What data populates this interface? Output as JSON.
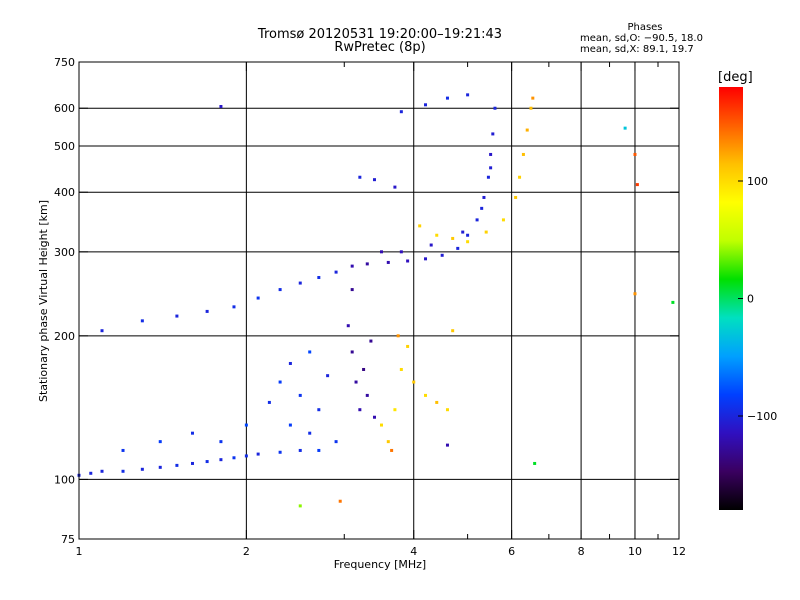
{
  "header": {
    "title_line1": "Tromsø 20120531 19:20:00–19:21:43",
    "title_line2": "RwPretec (8p)"
  },
  "stats": {
    "title": "Phases",
    "line1": "mean, sd,O: −90.5, 18.0",
    "line2": "mean, sd,X:  89.1, 19.7"
  },
  "colorbar": {
    "unit": "[deg]",
    "ticks": [
      "100",
      "0",
      "−100"
    ],
    "tick_values": [
      100,
      0,
      -100
    ],
    "range": [
      -180,
      180
    ],
    "colors": [
      "#000000",
      "#3a0060",
      "#3010c0",
      "#0040ff",
      "#00a0ff",
      "#00e0c0",
      "#00e000",
      "#c0ff00",
      "#ffff00",
      "#ffc000",
      "#ff6000",
      "#ff0000"
    ]
  },
  "chart_data": {
    "type": "scatter",
    "title": "Tromsø 20120531 19:20:00–19:21:43",
    "subtitle": "RwPretec (8p)",
    "xlabel": "Frequency [MHz]",
    "ylabel": "Stationary phase Virtual Height [km]",
    "xscale": "log",
    "yscale": "log",
    "xlim": [
      1,
      12
    ],
    "ylim": [
      75,
      750
    ],
    "xticks": [
      1,
      2,
      4,
      6,
      8,
      10,
      12
    ],
    "yticks": [
      75,
      100,
      200,
      300,
      400,
      500,
      600,
      750
    ],
    "xminor": [
      3,
      5,
      7,
      9,
      11
    ],
    "grid": true,
    "colorbar_label": "[deg]",
    "points": [
      {
        "f": 1.05,
        "h": 103,
        "p": -100
      },
      {
        "f": 1.1,
        "h": 104,
        "p": -100
      },
      {
        "f": 1.2,
        "h": 104,
        "p": -95
      },
      {
        "f": 1.3,
        "h": 105,
        "p": -100
      },
      {
        "f": 1.4,
        "h": 106,
        "p": -100
      },
      {
        "f": 1.5,
        "h": 107,
        "p": -95
      },
      {
        "f": 1.6,
        "h": 108,
        "p": -100
      },
      {
        "f": 1.7,
        "h": 109,
        "p": -95
      },
      {
        "f": 1.8,
        "h": 110,
        "p": -100
      },
      {
        "f": 1.9,
        "h": 111,
        "p": -90
      },
      {
        "f": 2.0,
        "h": 112,
        "p": -95
      },
      {
        "f": 2.1,
        "h": 113,
        "p": -100
      },
      {
        "f": 2.3,
        "h": 114,
        "p": -90
      },
      {
        "f": 2.5,
        "h": 115,
        "p": -95
      },
      {
        "f": 2.7,
        "h": 115,
        "p": -85
      },
      {
        "f": 1.2,
        "h": 115,
        "p": -90
      },
      {
        "f": 1.4,
        "h": 120,
        "p": -85
      },
      {
        "f": 1.6,
        "h": 125,
        "p": -95
      },
      {
        "f": 1.8,
        "h": 120,
        "p": -90
      },
      {
        "f": 2.0,
        "h": 130,
        "p": -80
      },
      {
        "f": 2.2,
        "h": 145,
        "p": -95
      },
      {
        "f": 2.3,
        "h": 160,
        "p": -85
      },
      {
        "f": 2.4,
        "h": 175,
        "p": -100
      },
      {
        "f": 2.5,
        "h": 150,
        "p": -90
      },
      {
        "f": 2.6,
        "h": 185,
        "p": -80
      },
      {
        "f": 2.7,
        "h": 140,
        "p": -95
      },
      {
        "f": 2.8,
        "h": 165,
        "p": -100
      },
      {
        "f": 2.9,
        "h": 120,
        "p": -90
      },
      {
        "f": 2.4,
        "h": 130,
        "p": -85
      },
      {
        "f": 2.6,
        "h": 125,
        "p": -95
      },
      {
        "f": 3.05,
        "h": 210,
        "p": -120
      },
      {
        "f": 3.1,
        "h": 185,
        "p": -130
      },
      {
        "f": 3.15,
        "h": 160,
        "p": -125
      },
      {
        "f": 3.2,
        "h": 140,
        "p": -120
      },
      {
        "f": 3.25,
        "h": 170,
        "p": -135
      },
      {
        "f": 3.3,
        "h": 150,
        "p": -125
      },
      {
        "f": 3.35,
        "h": 195,
        "p": -130
      },
      {
        "f": 3.4,
        "h": 135,
        "p": -120
      },
      {
        "f": 3.1,
        "h": 250,
        "p": -130
      },
      {
        "f": 3.5,
        "h": 130,
        "p": 100
      },
      {
        "f": 3.6,
        "h": 120,
        "p": 110
      },
      {
        "f": 3.7,
        "h": 140,
        "p": 95
      },
      {
        "f": 3.8,
        "h": 170,
        "p": 100
      },
      {
        "f": 3.9,
        "h": 190,
        "p": 105
      },
      {
        "f": 4.0,
        "h": 160,
        "p": 110
      },
      {
        "f": 4.2,
        "h": 150,
        "p": 100
      },
      {
        "f": 4.4,
        "h": 145,
        "p": 115
      },
      {
        "f": 4.6,
        "h": 140,
        "p": 100
      },
      {
        "f": 3.75,
        "h": 200,
        "p": 130
      },
      {
        "f": 3.65,
        "h": 115,
        "p": 140
      },
      {
        "f": 4.7,
        "h": 205,
        "p": 110
      },
      {
        "f": 1.1,
        "h": 205,
        "p": -100
      },
      {
        "f": 1.3,
        "h": 215,
        "p": -95
      },
      {
        "f": 1.5,
        "h": 220,
        "p": -100
      },
      {
        "f": 1.7,
        "h": 225,
        "p": -100
      },
      {
        "f": 1.9,
        "h": 230,
        "p": -95
      },
      {
        "f": 2.1,
        "h": 240,
        "p": -90
      },
      {
        "f": 2.3,
        "h": 250,
        "p": -95
      },
      {
        "f": 2.5,
        "h": 258,
        "p": -100
      },
      {
        "f": 2.7,
        "h": 265,
        "p": -95
      },
      {
        "f": 2.9,
        "h": 272,
        "p": -100
      },
      {
        "f": 3.1,
        "h": 280,
        "p": -120
      },
      {
        "f": 3.3,
        "h": 283,
        "p": -125
      },
      {
        "f": 3.6,
        "h": 285,
        "p": -120
      },
      {
        "f": 3.9,
        "h": 287,
        "p": -115
      },
      {
        "f": 4.2,
        "h": 290,
        "p": -110
      },
      {
        "f": 4.5,
        "h": 295,
        "p": -105
      },
      {
        "f": 4.8,
        "h": 305,
        "p": -100
      },
      {
        "f": 5.0,
        "h": 325,
        "p": -100
      },
      {
        "f": 5.2,
        "h": 350,
        "p": -100
      },
      {
        "f": 5.35,
        "h": 390,
        "p": -105
      },
      {
        "f": 5.45,
        "h": 430,
        "p": -100
      },
      {
        "f": 5.5,
        "h": 480,
        "p": -110
      },
      {
        "f": 5.55,
        "h": 530,
        "p": -105
      },
      {
        "f": 5.6,
        "h": 600,
        "p": -100
      },
      {
        "f": 3.5,
        "h": 300,
        "p": -120
      },
      {
        "f": 3.8,
        "h": 300,
        "p": -115
      },
      {
        "f": 4.3,
        "h": 310,
        "p": -110
      },
      {
        "f": 4.9,
        "h": 330,
        "p": -105
      },
      {
        "f": 5.3,
        "h": 370,
        "p": -100
      },
      {
        "f": 5.5,
        "h": 450,
        "p": -105
      },
      {
        "f": 4.1,
        "h": 340,
        "p": 105
      },
      {
        "f": 4.4,
        "h": 325,
        "p": 100
      },
      {
        "f": 4.7,
        "h": 320,
        "p": 110
      },
      {
        "f": 5.0,
        "h": 315,
        "p": 100
      },
      {
        "f": 5.4,
        "h": 330,
        "p": 105
      },
      {
        "f": 5.8,
        "h": 350,
        "p": 100
      },
      {
        "f": 6.1,
        "h": 390,
        "p": 110
      },
      {
        "f": 6.2,
        "h": 430,
        "p": 105
      },
      {
        "f": 6.3,
        "h": 480,
        "p": 115
      },
      {
        "f": 6.4,
        "h": 540,
        "p": 120
      },
      {
        "f": 6.5,
        "h": 600,
        "p": 115
      },
      {
        "f": 6.55,
        "h": 630,
        "p": 130
      },
      {
        "f": 3.2,
        "h": 430,
        "p": -100
      },
      {
        "f": 3.4,
        "h": 425,
        "p": -105
      },
      {
        "f": 3.7,
        "h": 410,
        "p": -110
      },
      {
        "f": 3.8,
        "h": 590,
        "p": -100
      },
      {
        "f": 4.2,
        "h": 610,
        "p": -100
      },
      {
        "f": 4.6,
        "h": 630,
        "p": -95
      },
      {
        "f": 5.0,
        "h": 640,
        "p": -100
      },
      {
        "f": 1.8,
        "h": 605,
        "p": -110
      },
      {
        "f": 9.6,
        "h": 545,
        "p": -30
      },
      {
        "f": 10.0,
        "h": 480,
        "p": 150
      },
      {
        "f": 10.1,
        "h": 415,
        "p": 160
      },
      {
        "f": 11.7,
        "h": 235,
        "p": 10
      },
      {
        "f": 10.0,
        "h": 245,
        "p": 130
      },
      {
        "f": 6.6,
        "h": 108,
        "p": 10
      },
      {
        "f": 4.6,
        "h": 118,
        "p": -120
      },
      {
        "f": 2.5,
        "h": 88,
        "p": 40
      },
      {
        "f": 2.95,
        "h": 90,
        "p": 140
      },
      {
        "f": 1.0,
        "h": 102,
        "p": -100
      }
    ]
  }
}
